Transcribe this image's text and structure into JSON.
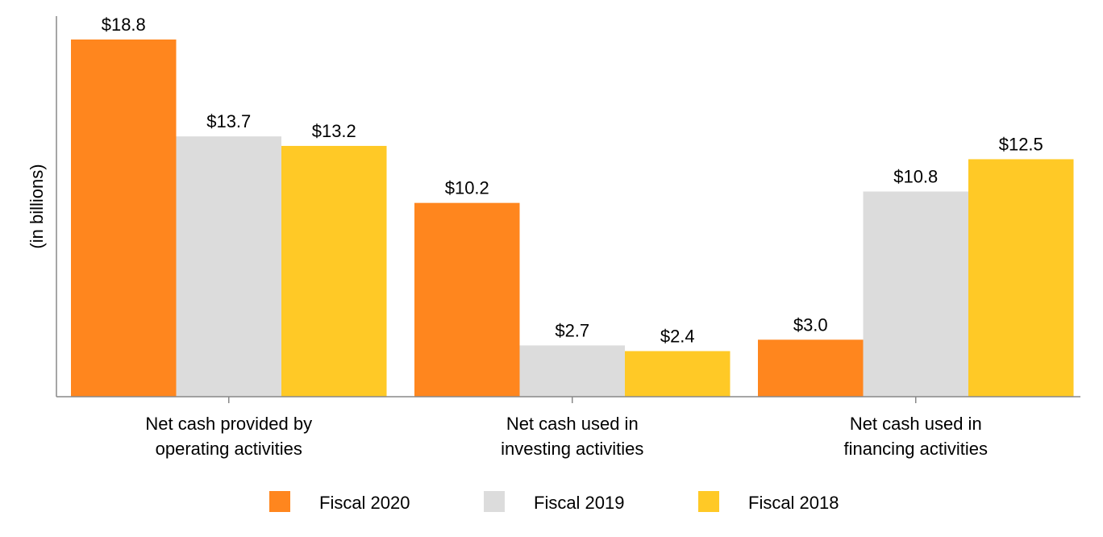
{
  "chart_data": {
    "type": "bar",
    "ylabel": "(in billions)",
    "categories": [
      [
        "Net cash provided by",
        "operating activities"
      ],
      [
        "Net cash used in",
        "investing activities"
      ],
      [
        "Net cash used in",
        "financing activities"
      ]
    ],
    "series": [
      {
        "name": "Fiscal 2020",
        "color": "#FF861E",
        "values": [
          18.8,
          10.2,
          3.0
        ],
        "labels": [
          "$18.8",
          "$10.2",
          "$3.0"
        ]
      },
      {
        "name": "Fiscal 2019",
        "color": "#DCDCDC",
        "values": [
          13.7,
          2.7,
          10.8
        ],
        "labels": [
          "$13.7",
          "$2.7",
          "$10.8"
        ]
      },
      {
        "name": "Fiscal 2018",
        "color": "#FFC926",
        "values": [
          13.2,
          2.4,
          12.5
        ],
        "labels": [
          "$13.2",
          "$2.4",
          "$12.5"
        ]
      }
    ],
    "ylim": [
      0,
      19.5
    ],
    "grid": false,
    "legend": "bottom-center",
    "axis_color": "#888888"
  }
}
